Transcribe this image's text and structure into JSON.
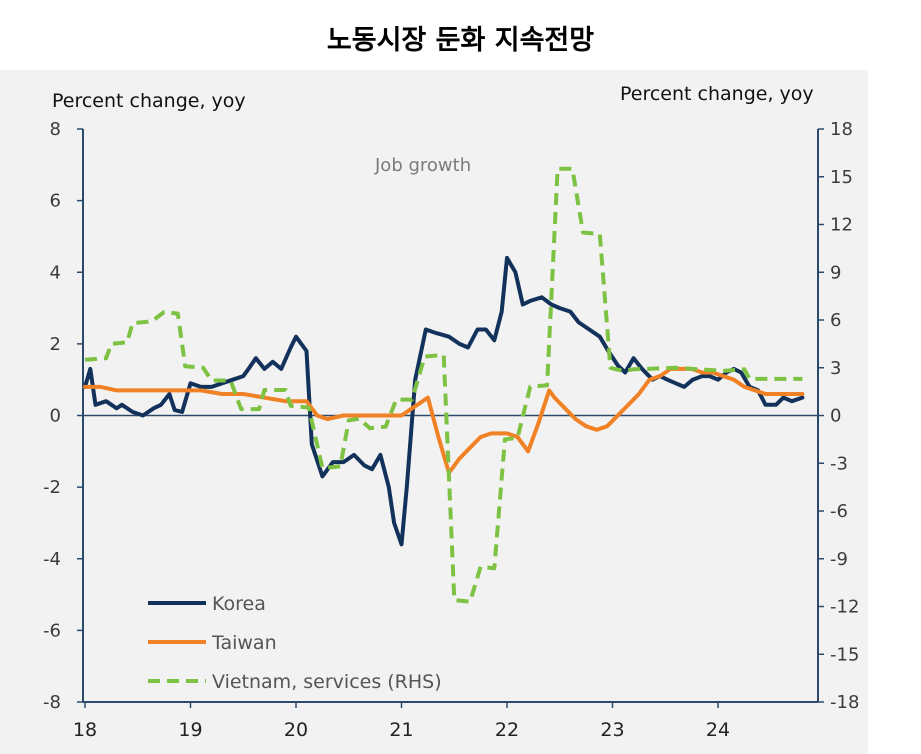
{
  "title": "노동시장 둔화 지속전망",
  "chart_data": {
    "type": "line",
    "title": "노동시장 둔화 지속전망",
    "annotation": "Job growth",
    "ylabel_left": "Percent change, yoy",
    "ylabel_right": "Percent change, yoy",
    "x_ticks": [
      "18",
      "19",
      "20",
      "21",
      "22",
      "23",
      "24"
    ],
    "xlim": [
      2018.0,
      2024.9
    ],
    "ylim_left": [
      -8,
      8
    ],
    "ylim_right": [
      -18,
      18
    ],
    "yticks_left": [
      "8",
      "6",
      "4",
      "2",
      "0",
      "-2",
      "-4",
      "-6",
      "-8"
    ],
    "yticks_right": [
      "18",
      "15",
      "12",
      "9",
      "6",
      "3",
      "0",
      "-3",
      "-6",
      "-9",
      "-12",
      "-15",
      "-18"
    ],
    "legend_position": "bottom-left",
    "series": [
      {
        "name": "Korea",
        "axis": "left",
        "color": "#13325b",
        "style": "solid",
        "points": [
          [
            2018.0,
            0.8
          ],
          [
            2018.05,
            1.3
          ],
          [
            2018.1,
            0.3
          ],
          [
            2018.2,
            0.4
          ],
          [
            2018.3,
            0.2
          ],
          [
            2018.35,
            0.3
          ],
          [
            2018.45,
            0.1
          ],
          [
            2018.55,
            0.0
          ],
          [
            2018.65,
            0.2
          ],
          [
            2018.72,
            0.3
          ],
          [
            2018.8,
            0.6
          ],
          [
            2018.85,
            0.15
          ],
          [
            2018.92,
            0.1
          ],
          [
            2019.0,
            0.9
          ],
          [
            2019.1,
            0.8
          ],
          [
            2019.2,
            0.8
          ],
          [
            2019.3,
            0.9
          ],
          [
            2019.4,
            1.0
          ],
          [
            2019.5,
            1.1
          ],
          [
            2019.55,
            1.3
          ],
          [
            2019.62,
            1.6
          ],
          [
            2019.7,
            1.3
          ],
          [
            2019.78,
            1.5
          ],
          [
            2019.86,
            1.3
          ],
          [
            2019.95,
            1.9
          ],
          [
            2020.0,
            2.2
          ],
          [
            2020.1,
            1.8
          ],
          [
            2020.15,
            -0.8
          ],
          [
            2020.25,
            -1.7
          ],
          [
            2020.35,
            -1.3
          ],
          [
            2020.45,
            -1.3
          ],
          [
            2020.55,
            -1.1
          ],
          [
            2020.65,
            -1.4
          ],
          [
            2020.72,
            -1.5
          ],
          [
            2020.8,
            -1.1
          ],
          [
            2020.88,
            -2.0
          ],
          [
            2020.93,
            -3.0
          ],
          [
            2021.0,
            -3.6
          ],
          [
            2021.05,
            -2.0
          ],
          [
            2021.13,
            1.0
          ],
          [
            2021.23,
            2.4
          ],
          [
            2021.33,
            2.3
          ],
          [
            2021.45,
            2.2
          ],
          [
            2021.55,
            2.0
          ],
          [
            2021.63,
            1.9
          ],
          [
            2021.72,
            2.4
          ],
          [
            2021.8,
            2.4
          ],
          [
            2021.88,
            2.1
          ],
          [
            2021.95,
            2.9
          ],
          [
            2022.0,
            4.4
          ],
          [
            2022.08,
            4.0
          ],
          [
            2022.15,
            3.1
          ],
          [
            2022.22,
            3.2
          ],
          [
            2022.33,
            3.3
          ],
          [
            2022.42,
            3.1
          ],
          [
            2022.5,
            3.0
          ],
          [
            2022.6,
            2.9
          ],
          [
            2022.68,
            2.6
          ],
          [
            2022.78,
            2.4
          ],
          [
            2022.88,
            2.2
          ],
          [
            2022.96,
            1.8
          ],
          [
            2023.05,
            1.4
          ],
          [
            2023.12,
            1.2
          ],
          [
            2023.2,
            1.6
          ],
          [
            2023.28,
            1.3
          ],
          [
            2023.38,
            1.0
          ],
          [
            2023.45,
            1.1
          ],
          [
            2023.52,
            1.0
          ],
          [
            2023.6,
            0.9
          ],
          [
            2023.68,
            0.8
          ],
          [
            2023.76,
            1.0
          ],
          [
            2023.85,
            1.1
          ],
          [
            2023.92,
            1.1
          ],
          [
            2024.0,
            1.0
          ],
          [
            2024.08,
            1.2
          ],
          [
            2024.15,
            1.3
          ],
          [
            2024.22,
            1.2
          ],
          [
            2024.3,
            0.8
          ],
          [
            2024.38,
            0.7
          ],
          [
            2024.45,
            0.3
          ],
          [
            2024.55,
            0.3
          ],
          [
            2024.62,
            0.5
          ],
          [
            2024.7,
            0.4
          ],
          [
            2024.8,
            0.5
          ]
        ]
      },
      {
        "name": "Taiwan",
        "axis": "left",
        "color": "#f08124",
        "style": "solid",
        "points": [
          [
            2018.0,
            0.8
          ],
          [
            2018.15,
            0.8
          ],
          [
            2018.3,
            0.7
          ],
          [
            2018.5,
            0.7
          ],
          [
            2018.7,
            0.7
          ],
          [
            2018.9,
            0.7
          ],
          [
            2019.1,
            0.7
          ],
          [
            2019.3,
            0.6
          ],
          [
            2019.5,
            0.6
          ],
          [
            2019.7,
            0.5
          ],
          [
            2019.9,
            0.4
          ],
          [
            2020.1,
            0.4
          ],
          [
            2020.2,
            0.0
          ],
          [
            2020.3,
            -0.1
          ],
          [
            2020.45,
            0.0
          ],
          [
            2020.6,
            0.0
          ],
          [
            2020.75,
            0.0
          ],
          [
            2020.9,
            0.0
          ],
          [
            2021.0,
            0.0
          ],
          [
            2021.15,
            0.3
          ],
          [
            2021.25,
            0.5
          ],
          [
            2021.35,
            -0.6
          ],
          [
            2021.45,
            -1.6
          ],
          [
            2021.55,
            -1.2
          ],
          [
            2021.65,
            -0.9
          ],
          [
            2021.75,
            -0.6
          ],
          [
            2021.85,
            -0.5
          ],
          [
            2022.0,
            -0.5
          ],
          [
            2022.1,
            -0.6
          ],
          [
            2022.2,
            -1.0
          ],
          [
            2022.3,
            -0.2
          ],
          [
            2022.4,
            0.7
          ],
          [
            2022.45,
            0.5
          ],
          [
            2022.55,
            0.2
          ],
          [
            2022.65,
            -0.1
          ],
          [
            2022.75,
            -0.3
          ],
          [
            2022.85,
            -0.4
          ],
          [
            2022.95,
            -0.3
          ],
          [
            2023.05,
            0.0
          ],
          [
            2023.15,
            0.3
          ],
          [
            2023.25,
            0.6
          ],
          [
            2023.35,
            1.0
          ],
          [
            2023.45,
            1.1
          ],
          [
            2023.55,
            1.3
          ],
          [
            2023.65,
            1.3
          ],
          [
            2023.75,
            1.3
          ],
          [
            2023.85,
            1.2
          ],
          [
            2023.95,
            1.2
          ],
          [
            2024.05,
            1.1
          ],
          [
            2024.15,
            1.0
          ],
          [
            2024.25,
            0.8
          ],
          [
            2024.35,
            0.7
          ],
          [
            2024.45,
            0.6
          ],
          [
            2024.55,
            0.6
          ],
          [
            2024.65,
            0.6
          ],
          [
            2024.8,
            0.6
          ]
        ]
      },
      {
        "name": "Vietnam, services (RHS)",
        "axis": "right",
        "color": "#7dc242",
        "style": "dashed",
        "points": [
          [
            2018.0,
            3.5
          ],
          [
            2018.2,
            3.6
          ],
          [
            2018.25,
            4.5
          ],
          [
            2018.4,
            4.6
          ],
          [
            2018.45,
            5.8
          ],
          [
            2018.6,
            5.9
          ],
          [
            2018.65,
            6.0
          ],
          [
            2018.75,
            6.5
          ],
          [
            2018.88,
            6.4
          ],
          [
            2018.95,
            3.1
          ],
          [
            2019.12,
            3.0
          ],
          [
            2019.2,
            2.2
          ],
          [
            2019.38,
            2.2
          ],
          [
            2019.48,
            0.4
          ],
          [
            2019.65,
            0.4
          ],
          [
            2019.7,
            1.6
          ],
          [
            2019.9,
            1.6
          ],
          [
            2019.95,
            0.6
          ],
          [
            2020.12,
            0.5
          ],
          [
            2020.25,
            -3.3
          ],
          [
            2020.42,
            -3.2
          ],
          [
            2020.5,
            -0.3
          ],
          [
            2020.6,
            -0.2
          ],
          [
            2020.7,
            -0.8
          ],
          [
            2020.85,
            -0.7
          ],
          [
            2020.95,
            1.0
          ],
          [
            2021.1,
            1.0
          ],
          [
            2021.22,
            3.7
          ],
          [
            2021.4,
            3.8
          ],
          [
            2021.5,
            -11.6
          ],
          [
            2021.65,
            -11.7
          ],
          [
            2021.75,
            -9.5
          ],
          [
            2021.88,
            -9.6
          ],
          [
            2021.98,
            -1.5
          ],
          [
            2022.1,
            -1.4
          ],
          [
            2022.22,
            1.8
          ],
          [
            2022.38,
            1.9
          ],
          [
            2022.48,
            15.5
          ],
          [
            2022.62,
            15.5
          ],
          [
            2022.72,
            11.5
          ],
          [
            2022.88,
            11.4
          ],
          [
            2022.98,
            3.0
          ],
          [
            2023.1,
            2.8
          ],
          [
            2023.2,
            2.9
          ],
          [
            2023.6,
            3.0
          ],
          [
            2024.05,
            2.8
          ],
          [
            2024.25,
            2.9
          ],
          [
            2024.3,
            2.3
          ],
          [
            2024.8,
            2.3
          ]
        ]
      }
    ]
  }
}
